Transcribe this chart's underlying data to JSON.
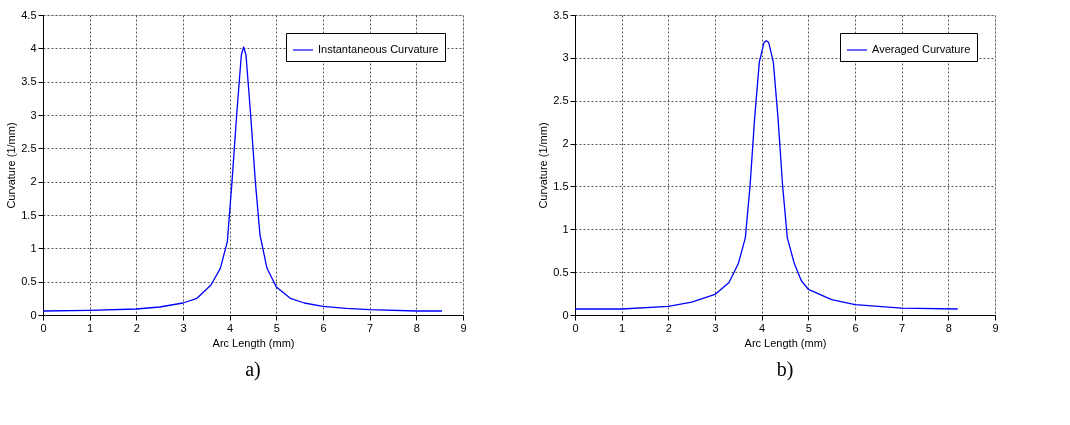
{
  "chart_data": [
    {
      "type": "line",
      "xlabel": "Arc Length (mm)",
      "ylabel": "Curvature (1/mm)",
      "annotations": [
        "a)"
      ],
      "x": [
        0,
        1,
        2,
        2.5,
        3,
        3.3,
        3.6,
        3.8,
        3.95,
        4.05,
        4.15,
        4.25,
        4.3,
        4.35,
        4.45,
        4.55,
        4.65,
        4.8,
        5,
        5.3,
        5.6,
        6,
        6.5,
        7,
        8,
        8.55
      ],
      "series": [
        {
          "name": "Instantaneous Curvature",
          "color": "#0000ff",
          "values": [
            0.06,
            0.07,
            0.09,
            0.12,
            0.18,
            0.25,
            0.45,
            0.7,
            1.1,
            2.0,
            3.0,
            3.9,
            4.02,
            3.9,
            3.0,
            2.0,
            1.2,
            0.7,
            0.42,
            0.25,
            0.18,
            0.13,
            0.1,
            0.08,
            0.06,
            0.06
          ]
        }
      ],
      "xlim": [
        0,
        9
      ],
      "xticks": [
        0,
        1,
        2,
        3,
        4,
        5,
        6,
        7,
        8,
        9
      ],
      "ylim": [
        0,
        4.5
      ],
      "yticks": [
        0,
        0.5,
        1,
        1.5,
        2,
        2.5,
        3,
        3.5,
        4,
        4.5
      ],
      "grid": true,
      "legend": "top right",
      "line_style": "solid"
    },
    {
      "type": "line",
      "xlabel": "Arc Length (mm)",
      "ylabel": "Curvature (1/mm)",
      "annotations": [
        "b)"
      ],
      "x": [
        0,
        1,
        2,
        2.5,
        3,
        3.3,
        3.5,
        3.65,
        3.75,
        3.85,
        3.95,
        4.05,
        4.1,
        4.15,
        4.25,
        4.35,
        4.45,
        4.55,
        4.7,
        4.85,
        5,
        5.5,
        6,
        7,
        8.2
      ],
      "series": [
        {
          "name": "Averaged Curvature",
          "color": "#0000ff",
          "values": [
            0.07,
            0.07,
            0.1,
            0.15,
            0.24,
            0.38,
            0.6,
            0.9,
            1.5,
            2.3,
            2.95,
            3.18,
            3.2,
            3.18,
            2.95,
            2.3,
            1.5,
            0.9,
            0.6,
            0.4,
            0.3,
            0.18,
            0.12,
            0.08,
            0.07
          ]
        }
      ],
      "xlim": [
        0,
        9
      ],
      "xticks": [
        0,
        1,
        2,
        3,
        4,
        5,
        6,
        7,
        8,
        9
      ],
      "ylim": [
        0,
        3.5
      ],
      "yticks": [
        0,
        0.5,
        1,
        1.5,
        2,
        2.5,
        3,
        3.5
      ],
      "grid": true,
      "legend": "top right",
      "line_style": "solid"
    }
  ]
}
